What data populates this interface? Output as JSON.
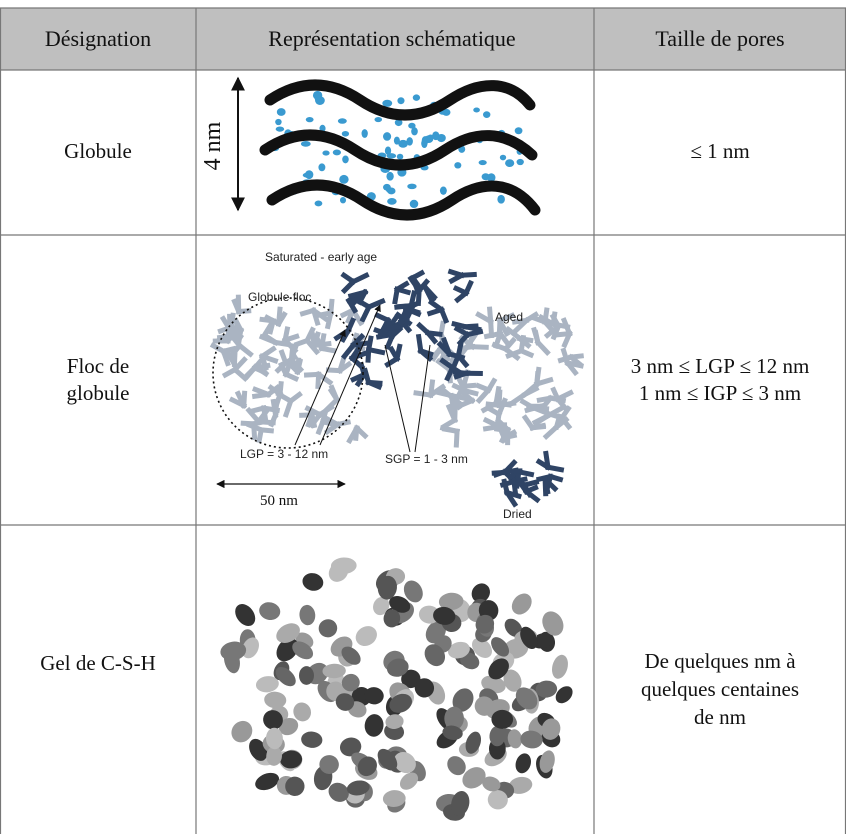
{
  "table": {
    "header": [
      "Désignation",
      "Représentation schématique",
      "Taille de pores"
    ],
    "rows": [
      {
        "designation": [
          "Globule"
        ],
        "schematic": {
          "scale": "4 nm"
        },
        "pore_size": [
          "≤ 1 nm"
        ]
      },
      {
        "designation": [
          "Floc de",
          "globule"
        ],
        "schematic": {
          "state_saturated": "Saturated - early age",
          "floc": "Globule floc",
          "state_aged": "Aged",
          "lgp": "LGP = 3 - 12 nm",
          "sgp": "SGP = 1 - 3 nm",
          "scale": "50 nm",
          "state_dried": "Dried"
        },
        "pore_size": [
          "3 nm ≤ LGP ≤ 12 nm",
          "1 nm ≤ IGP ≤ 3 nm"
        ]
      },
      {
        "designation": [
          "Gel de C-S-H"
        ],
        "schematic": {},
        "pore_size": [
          "De quelques nm à",
          "quelques centaines",
          "de nm"
        ]
      }
    ]
  }
}
